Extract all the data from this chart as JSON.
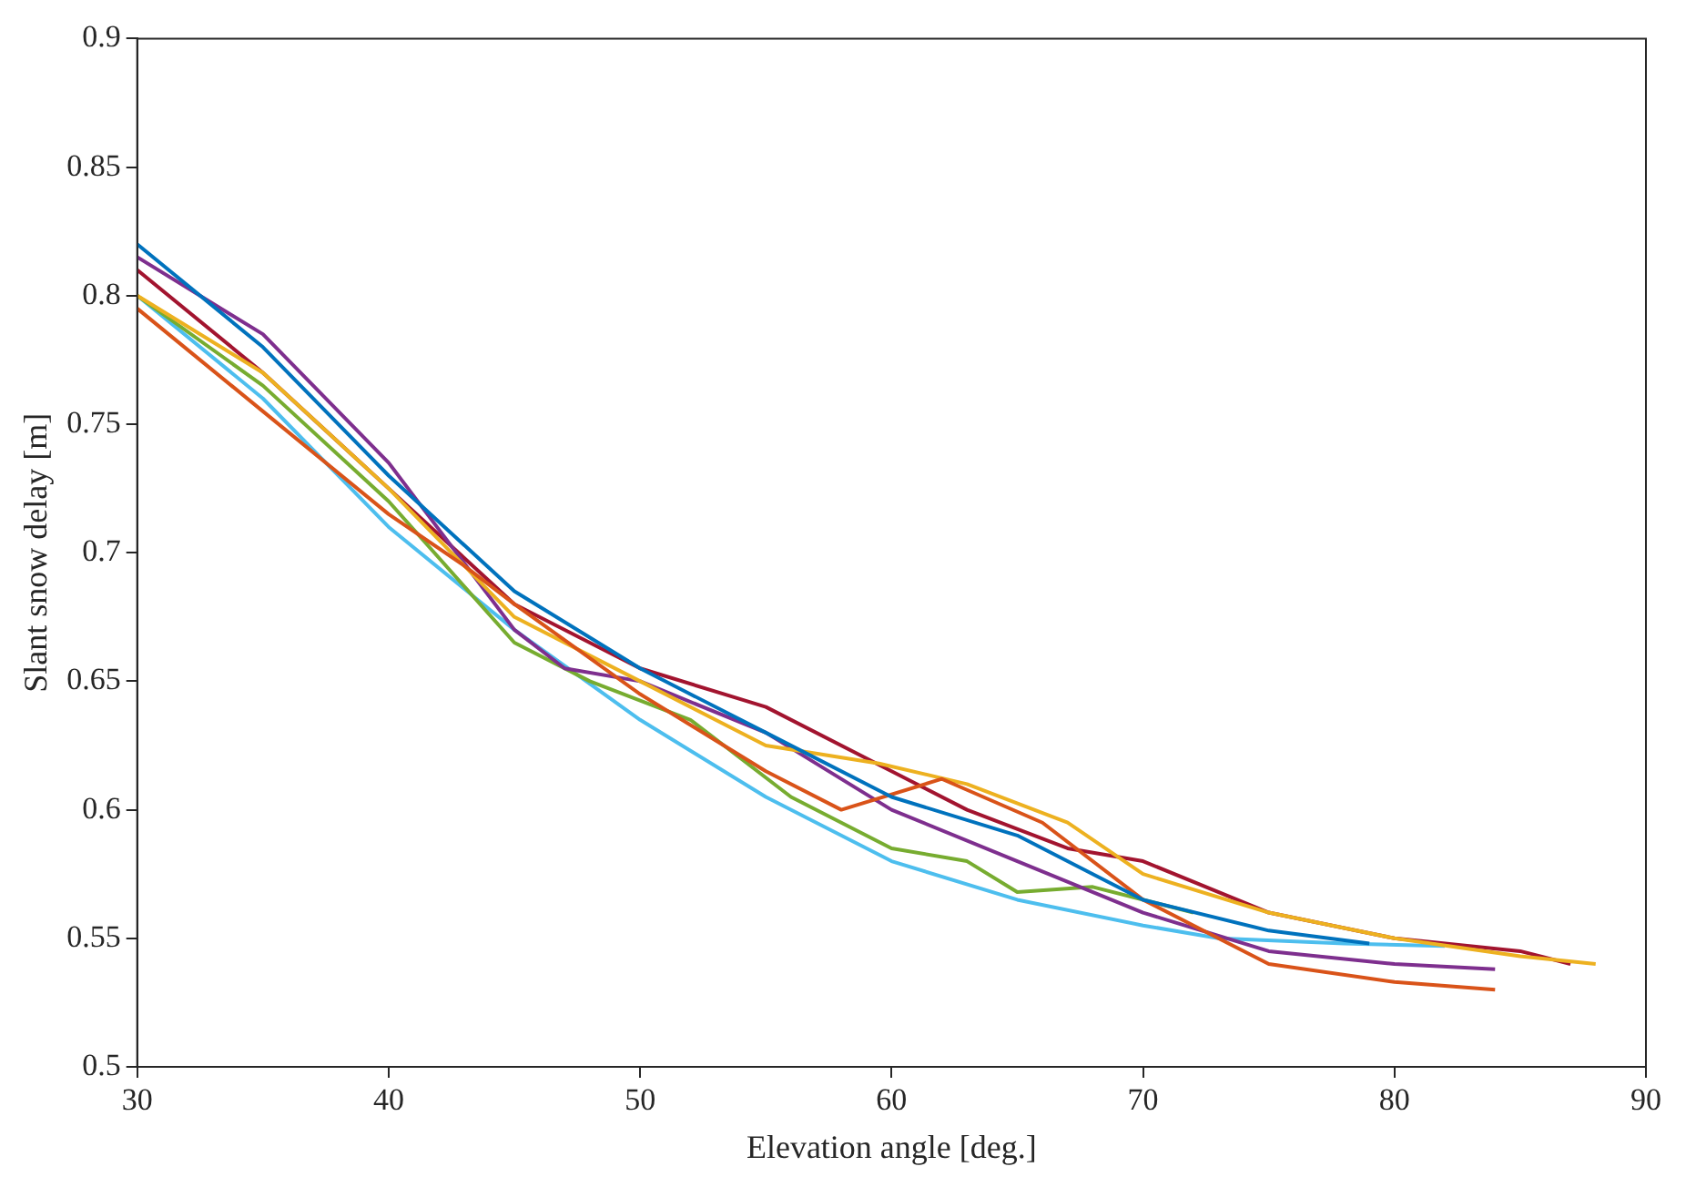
{
  "chart_data": {
    "type": "line",
    "xlabel": "Elevation angle [deg.]",
    "ylabel": "Slant snow delay [m]",
    "xlim": [
      30,
      90
    ],
    "xticks": [
      30,
      40,
      50,
      60,
      70,
      80,
      90
    ],
    "ylim": [
      0.5,
      0.9
    ],
    "yticks": [
      0.5,
      0.55,
      0.6,
      0.65,
      0.7,
      0.75,
      0.8,
      0.85,
      0.9
    ],
    "grid": false,
    "legend": false,
    "marker": "none",
    "line_style": "solid",
    "series": [
      {
        "color": "#0072bd",
        "x": [
          30,
          35,
          40,
          45,
          50,
          55,
          60,
          65,
          68,
          70,
          75,
          79
        ],
        "values": [
          0.82,
          0.78,
          0.73,
          0.685,
          0.655,
          0.63,
          0.605,
          0.59,
          0.575,
          0.565,
          0.553,
          0.548
        ]
      },
      {
        "color": "#d95319",
        "x": [
          30,
          35,
          40,
          43,
          45,
          50,
          55,
          58,
          62,
          66,
          70,
          75,
          80,
          84
        ],
        "values": [
          0.795,
          0.755,
          0.715,
          0.695,
          0.68,
          0.645,
          0.615,
          0.6,
          0.612,
          0.595,
          0.565,
          0.54,
          0.533,
          0.53
        ]
      },
      {
        "color": "#edb120",
        "x": [
          30,
          35,
          40,
          45,
          50,
          55,
          59.5,
          63,
          67,
          70,
          75,
          80,
          85,
          88
        ],
        "values": [
          0.8,
          0.77,
          0.725,
          0.675,
          0.65,
          0.625,
          0.618,
          0.61,
          0.595,
          0.575,
          0.56,
          0.55,
          0.543,
          0.54
        ]
      },
      {
        "color": "#7e2f8e",
        "x": [
          30,
          35,
          40,
          45,
          47,
          50,
          55,
          60,
          65,
          70,
          75,
          80,
          84
        ],
        "values": [
          0.815,
          0.785,
          0.735,
          0.67,
          0.655,
          0.65,
          0.63,
          0.6,
          0.58,
          0.56,
          0.545,
          0.54,
          0.538
        ]
      },
      {
        "color": "#77ac30",
        "x": [
          30,
          35,
          40,
          45,
          48,
          52,
          56,
          60,
          63,
          65,
          68,
          72
        ],
        "values": [
          0.8,
          0.765,
          0.72,
          0.665,
          0.65,
          0.635,
          0.605,
          0.585,
          0.58,
          0.568,
          0.57,
          0.56
        ]
      },
      {
        "color": "#4dbeee",
        "x": [
          30,
          35,
          40,
          45,
          50,
          55,
          60,
          65,
          70,
          73,
          78,
          82
        ],
        "values": [
          0.8,
          0.76,
          0.71,
          0.67,
          0.635,
          0.605,
          0.58,
          0.565,
          0.555,
          0.55,
          0.548,
          0.547
        ]
      },
      {
        "color": "#a2142f",
        "x": [
          30,
          35,
          40,
          45,
          50,
          55,
          60,
          63,
          67,
          70,
          75,
          80,
          85,
          87
        ],
        "values": [
          0.81,
          0.77,
          0.725,
          0.68,
          0.655,
          0.64,
          0.615,
          0.6,
          0.585,
          0.58,
          0.56,
          0.55,
          0.545,
          0.54
        ]
      }
    ]
  }
}
